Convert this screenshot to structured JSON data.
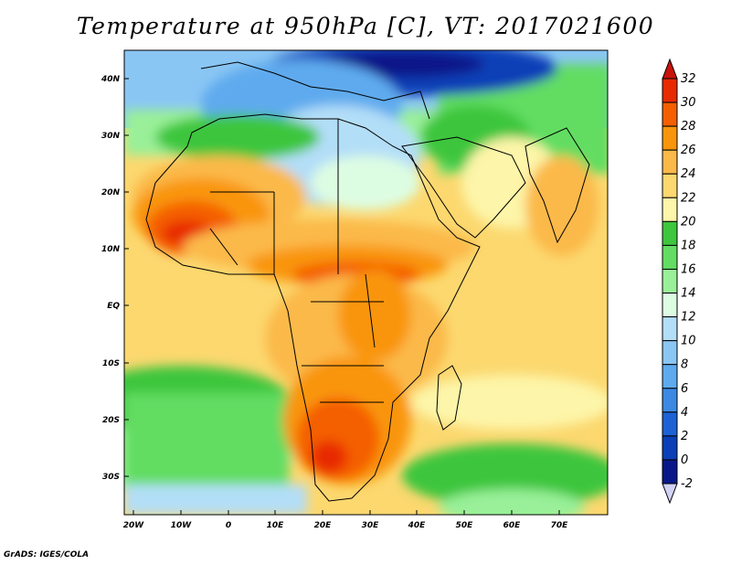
{
  "title": "Temperature at 950hPa [C], VT: 2017021600",
  "footer": "GrADS: IGES/COLA",
  "map": {
    "lat_labels": [
      "40N",
      "30N",
      "20N",
      "10N",
      "EQ",
      "10S",
      "20S",
      "30S"
    ],
    "lon_labels": [
      "20W",
      "10W",
      "0",
      "10E",
      "20E",
      "30E",
      "40E",
      "50E",
      "60E",
      "70E"
    ]
  },
  "colorbar": {
    "labels": [
      "32",
      "30",
      "28",
      "26",
      "24",
      "22",
      "20",
      "18",
      "16",
      "14",
      "12",
      "10",
      "8",
      "6",
      "4",
      "2",
      "0",
      "-2"
    ],
    "colors": [
      "#e82a00",
      "#f45f00",
      "#f9950a",
      "#fbb94a",
      "#fcd86f",
      "#fdf5a9",
      "#3ec63e",
      "#62dd62",
      "#99f098",
      "#ddfde2",
      "#b3def8",
      "#8ac6f4",
      "#5eaaee",
      "#3b89e2",
      "#1d62d4",
      "#0a3fb7",
      "#091889"
    ],
    "top_arrow_color": "#c8120a",
    "bottom_arrow_color": "#d2d2f5"
  }
}
